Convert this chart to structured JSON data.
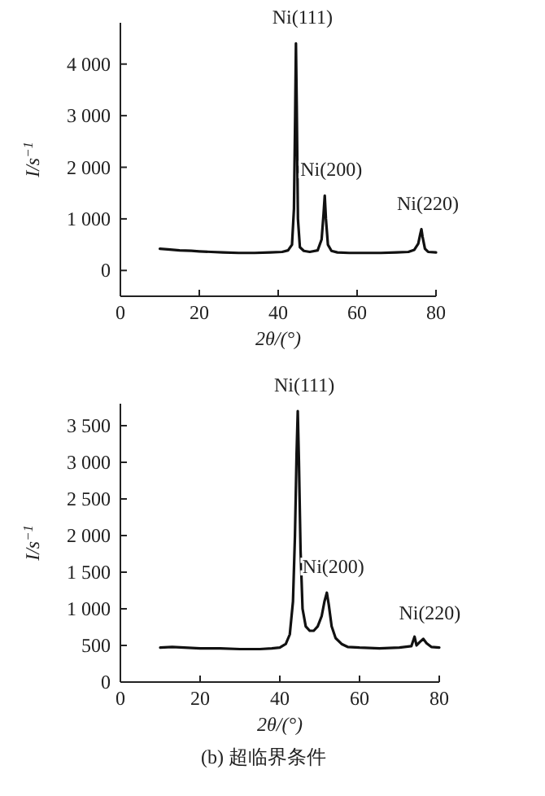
{
  "chart_data": [
    {
      "type": "line",
      "xlabel": "2θ/(°)",
      "ylabel": "I/s$^{−1}$",
      "xlim": [
        0,
        80
      ],
      "ylim": [
        -500,
        4800
      ],
      "xticks": [
        0,
        20,
        40,
        60,
        80
      ],
      "yticks": [
        {
          "value": 0,
          "label": "0"
        },
        {
          "value": 1000,
          "label": "1 000"
        },
        {
          "value": 2000,
          "label": "2 000"
        },
        {
          "value": 3000,
          "label": "3 000"
        },
        {
          "value": 4000,
          "label": "4 000"
        }
      ],
      "series": [
        {
          "color": "#111111",
          "x": [
            10,
            12,
            15,
            18,
            20,
            23,
            26,
            30,
            34,
            38,
            41,
            42.5,
            43.5,
            44,
            44.3,
            44.5,
            44.7,
            45,
            45.5,
            46.5,
            48,
            50,
            51,
            51.5,
            51.8,
            52.1,
            52.6,
            53.5,
            55,
            58,
            62,
            66,
            70,
            73,
            74.5,
            75.5,
            76,
            76.3,
            76.6,
            77.2,
            78,
            80
          ],
          "values": [
            420,
            410,
            390,
            380,
            370,
            360,
            350,
            340,
            340,
            350,
            360,
            390,
            500,
            1200,
            3000,
            4400,
            3200,
            1000,
            450,
            380,
            360,
            390,
            600,
            1100,
            1450,
            1000,
            500,
            380,
            350,
            340,
            340,
            340,
            350,
            360,
            400,
            520,
            700,
            800,
            650,
            420,
            360,
            350
          ]
        }
      ],
      "annotations": [
        {
          "text": "Ni(111)",
          "x": 44.5,
          "y": 4400
        },
        {
          "text": "Ni(200)",
          "x": 51.8,
          "y": 1450
        },
        {
          "text": "Ni(220)",
          "x": 76.3,
          "y": 800
        }
      ]
    },
    {
      "type": "line",
      "xlabel": "2θ/(°)",
      "ylabel": "I/s$^{−1}$",
      "xlim": [
        0,
        80
      ],
      "ylim": [
        0,
        3800
      ],
      "xticks": [
        0,
        20,
        40,
        60,
        80
      ],
      "yticks": [
        0,
        {
          "value": 500,
          "label": "500"
        },
        {
          "value": 1000,
          "label": "1 000"
        },
        {
          "value": 1500,
          "label": "1 500"
        },
        {
          "value": 2000,
          "label": "2 000"
        },
        {
          "value": 2500,
          "label": "2 500"
        },
        {
          "value": 3000,
          "label": "3 000"
        },
        {
          "value": 3500,
          "label": "3 500"
        }
      ],
      "series": [
        {
          "color": "#111111",
          "x": [
            10,
            13,
            16,
            20,
            25,
            30,
            35,
            38,
            40,
            41.5,
            42.5,
            43.3,
            43.8,
            44.2,
            44.5,
            44.8,
            45.2,
            45.7,
            46.5,
            47.5,
            48.5,
            49.5,
            50.5,
            51.2,
            51.8,
            52.3,
            53,
            54,
            55.5,
            57,
            60,
            65,
            70,
            73,
            73.8,
            74.3,
            75,
            76,
            76.8,
            78,
            80
          ],
          "values": [
            470,
            480,
            470,
            460,
            460,
            450,
            450,
            460,
            470,
            520,
            650,
            1100,
            2000,
            3100,
            3700,
            3000,
            1800,
            1000,
            760,
            700,
            700,
            760,
            900,
            1100,
            1220,
            1050,
            760,
            600,
            520,
            480,
            470,
            460,
            470,
            490,
            620,
            500,
            540,
            590,
            530,
            480,
            470
          ]
        }
      ],
      "annotations": [
        {
          "text": "Ni(111)",
          "x": 44.5,
          "y": 3700
        },
        {
          "text": "Ni(200)",
          "x": 51.8,
          "y": 1220
        },
        {
          "text": "Ni(220)",
          "x": 76,
          "y": 590
        },
        "(b) 超临界条件"
      ]
    }
  ]
}
